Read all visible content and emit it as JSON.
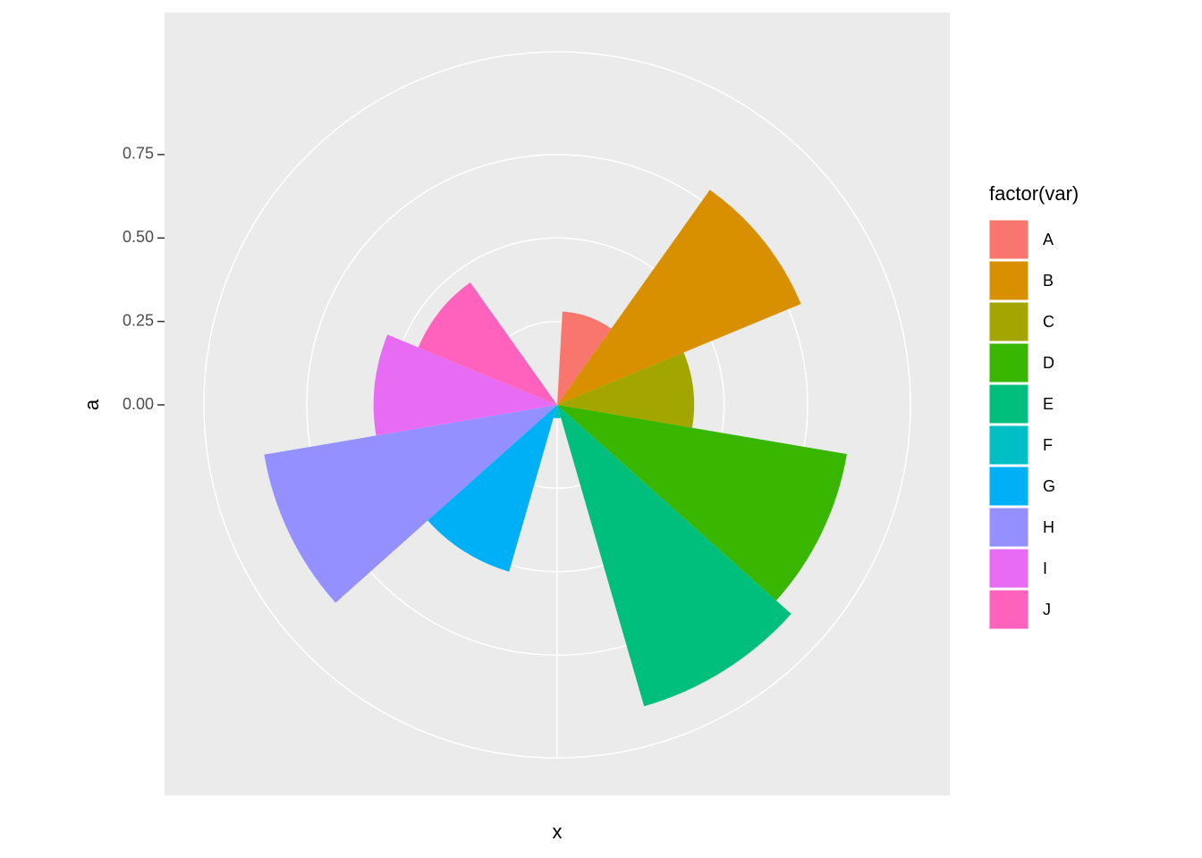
{
  "chart_data": {
    "type": "polar_bar",
    "x_label": "x",
    "y_label": "a",
    "legend_title": "factor(var)",
    "categories": [
      "A",
      "B",
      "C",
      "D",
      "E",
      "F",
      "G",
      "H",
      "I",
      "J"
    ],
    "values": [
      0.28,
      0.79,
      0.41,
      0.88,
      0.94,
      0.04,
      0.52,
      0.89,
      0.55,
      0.45
    ],
    "colors": [
      "#F8766D",
      "#D89000",
      "#A3A500",
      "#39B600",
      "#00BF7D",
      "#00BFC4",
      "#00B0F6",
      "#9590FF",
      "#E76BF3",
      "#FF62BC"
    ],
    "ylim": [
      0,
      0.94
    ],
    "yticks": [
      {
        "value": 0,
        "label": "0.00"
      },
      0.25,
      {
        "value": 0.5,
        "label": "0.50"
      },
      0.75
    ],
    "grid": true
  }
}
